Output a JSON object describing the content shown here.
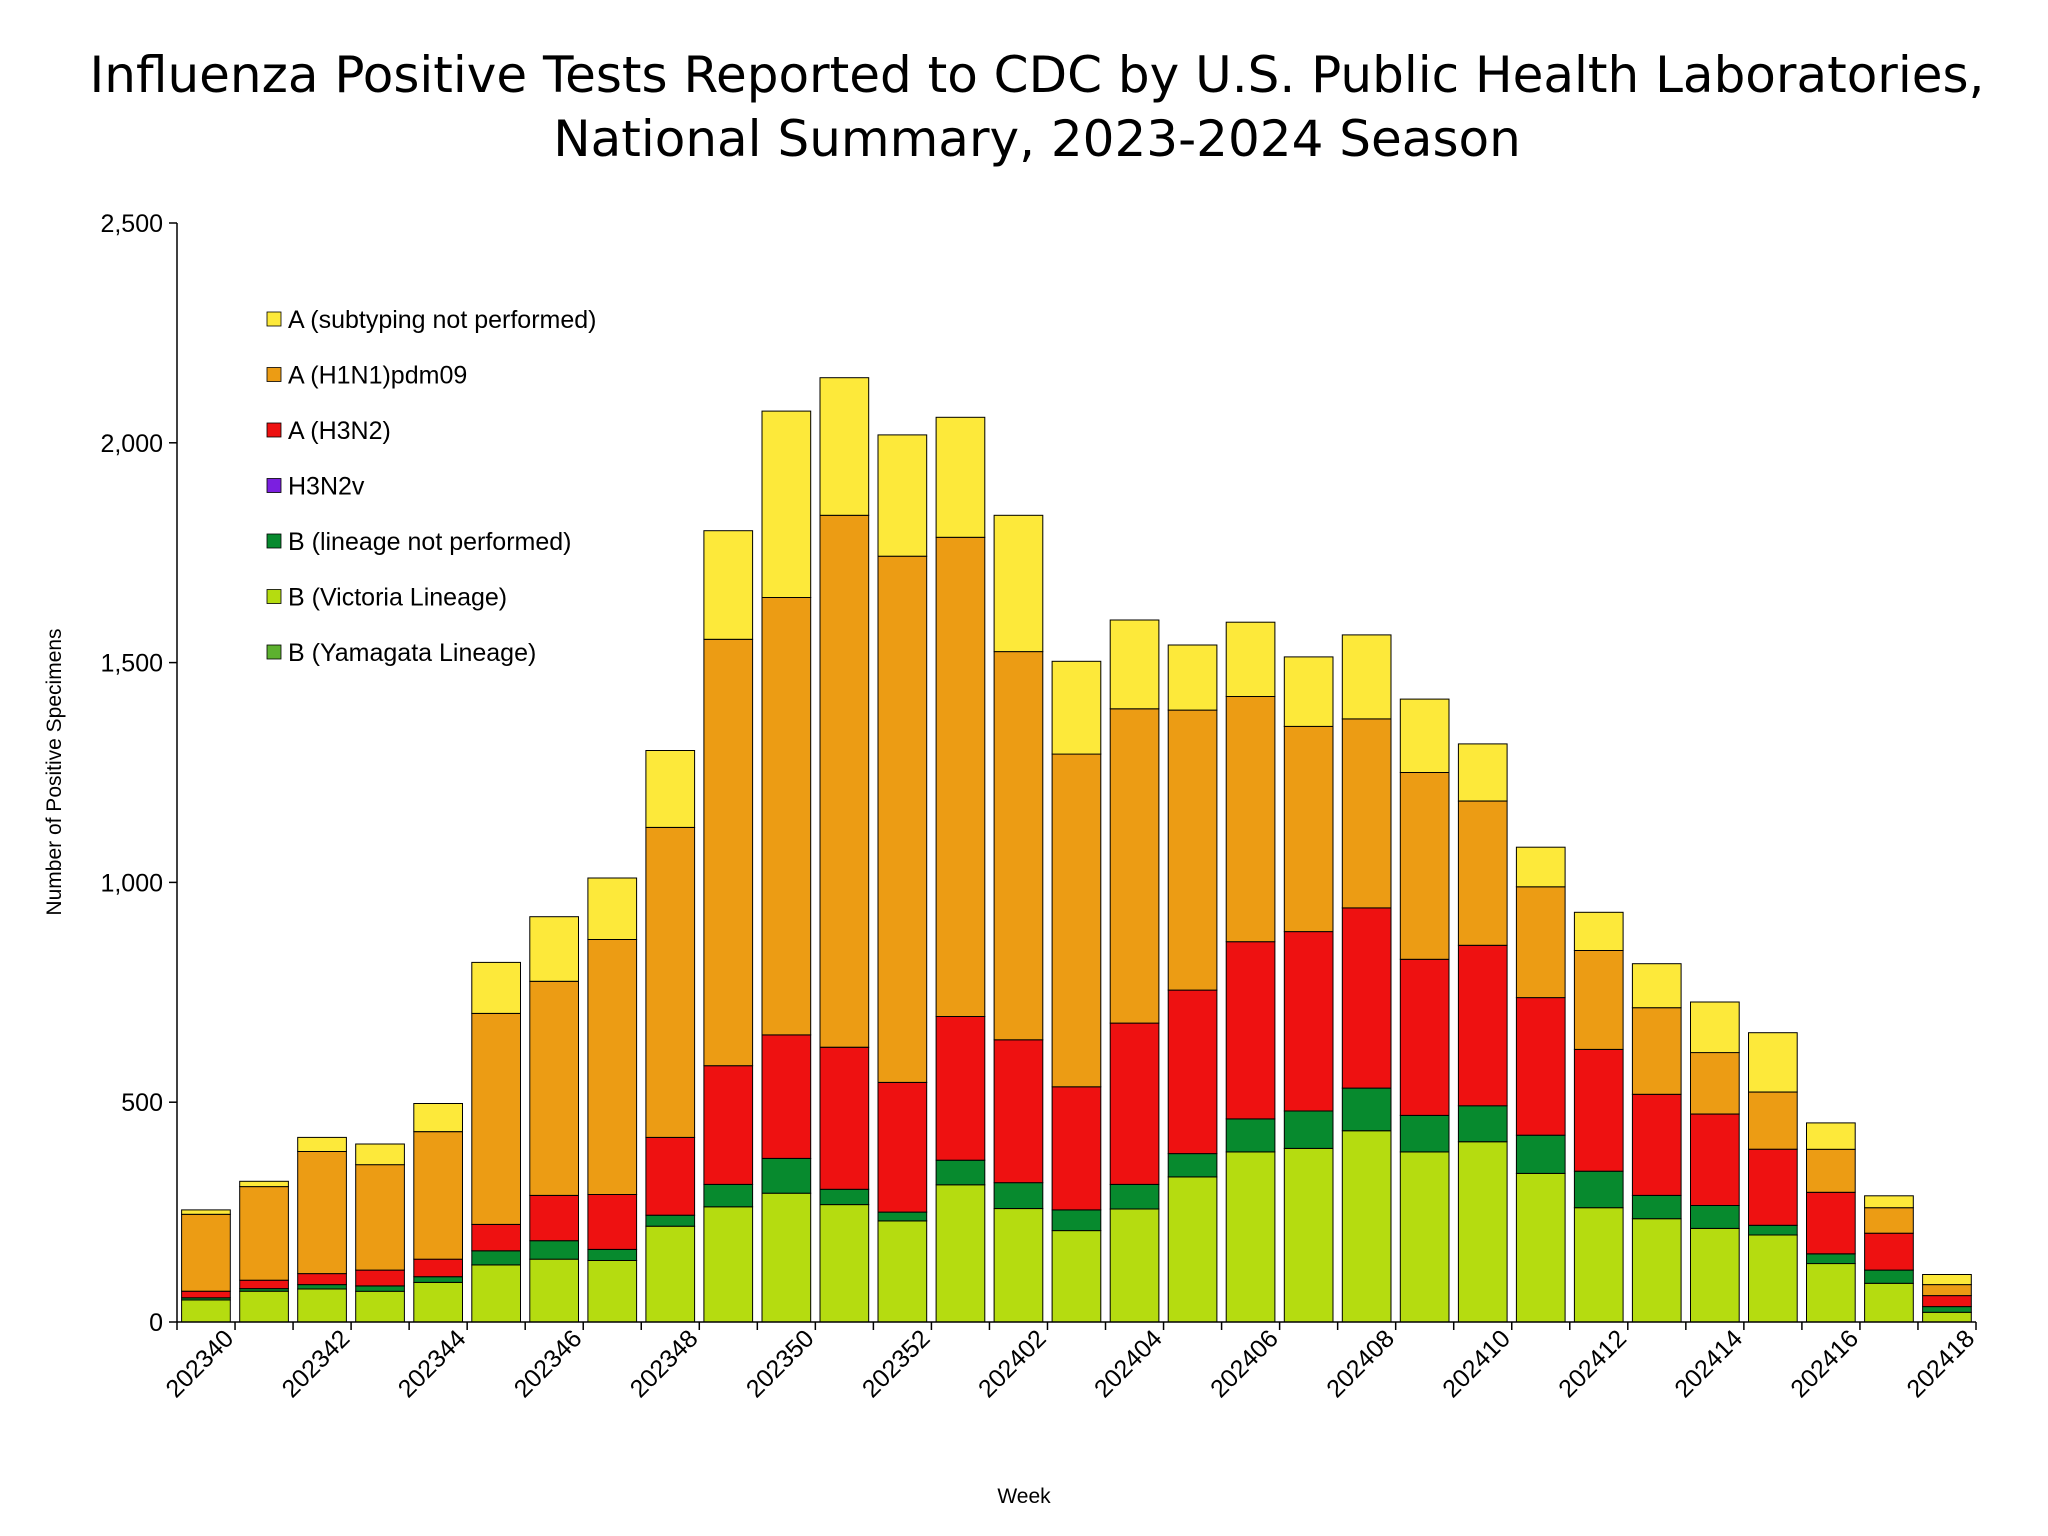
{
  "chart_data": {
    "type": "bar",
    "stacked": true,
    "title": [
      "Influenza Positive Tests Reported to CDC by U.S. Public Health Laboratories,",
      "National Summary, 2023-2024 Season"
    ],
    "xlabel": "Week",
    "ylabel": "Number of Positive Specimens",
    "ylim": [
      0,
      2500
    ],
    "yticks": [
      0,
      500,
      1000,
      1500,
      2000,
      2500
    ],
    "ytick_labels": [
      "0",
      "500",
      "1,000",
      "1,500",
      "2,000",
      "2,500"
    ],
    "grid": false,
    "legend_position": "top-left",
    "categories": [
      "202340",
      "202341",
      "202342",
      "202343",
      "202344",
      "202345",
      "202346",
      "202347",
      "202348",
      "202349",
      "202350",
      "202351",
      "202352",
      "202401",
      "202402",
      "202403",
      "202404",
      "202405",
      "202406",
      "202407",
      "202408",
      "202409",
      "202410",
      "202411",
      "202412",
      "202413",
      "202414",
      "202415",
      "202416",
      "202417",
      "202418"
    ],
    "xtick_labels": [
      "202340",
      "202342",
      "202344",
      "202346",
      "202348",
      "202350",
      "202352",
      "202402",
      "202404",
      "202406",
      "202408",
      "202410",
      "202412",
      "202414",
      "202416",
      "202418"
    ],
    "series": [
      {
        "name": "B (Yamagata Lineage)",
        "color": "#5db12f",
        "values": [
          0,
          0,
          0,
          0,
          0,
          0,
          0,
          0,
          0,
          0,
          0,
          0,
          0,
          0,
          0,
          0,
          0,
          0,
          0,
          0,
          0,
          0,
          0,
          0,
          0,
          0,
          0,
          0,
          0,
          0,
          0
        ]
      },
      {
        "name": "B (Victoria Lineage)",
        "color": "#b5dc10",
        "values": [
          50,
          70,
          75,
          70,
          90,
          130,
          143,
          140,
          218,
          262,
          293,
          267,
          230,
          312,
          258,
          208,
          257,
          330,
          387,
          395,
          435,
          387,
          410,
          338,
          260,
          235,
          213,
          198,
          133,
          88,
          22
        ]
      },
      {
        "name": "B (lineage not performed)",
        "color": "#078a2e",
        "values": [
          5,
          6,
          10,
          12,
          13,
          32,
          42,
          25,
          25,
          51,
          79,
          35,
          20,
          56,
          59,
          47,
          56,
          53,
          75,
          85,
          97,
          83,
          82,
          87,
          83,
          53,
          52,
          22,
          22,
          30,
          13
        ]
      },
      {
        "name": "H3N2v",
        "color": "#7b1fe0",
        "values": [
          0,
          0,
          0,
          0,
          0,
          0,
          0,
          0,
          0,
          0,
          0,
          0,
          0,
          0,
          0,
          0,
          0,
          0,
          0,
          0,
          0,
          0,
          0,
          0,
          0,
          0,
          0,
          0,
          0,
          0,
          0
        ]
      },
      {
        "name": "A (H3N2)",
        "color": "#ee1111",
        "values": [
          15,
          19,
          25,
          36,
          40,
          60,
          103,
          125,
          177,
          270,
          281,
          323,
          295,
          327,
          325,
          280,
          367,
          372,
          403,
          408,
          410,
          355,
          365,
          313,
          277,
          230,
          208,
          173,
          140,
          84,
          25
        ]
      },
      {
        "name": "A (H1N1)pdm09",
        "color": "#ec9c14",
        "values": [
          175,
          213,
          278,
          240,
          290,
          480,
          487,
          580,
          705,
          970,
          995,
          1210,
          1197,
          1090,
          883,
          757,
          715,
          637,
          558,
          467,
          430,
          425,
          328,
          252,
          225,
          197,
          140,
          130,
          98,
          58,
          25
        ]
      },
      {
        "name": "A (subtyping not performed)",
        "color": "#fde93a",
        "values": [
          10,
          12,
          32,
          47,
          64,
          116,
          147,
          140,
          175,
          247,
          424,
          313,
          276,
          273,
          310,
          211,
          202,
          148,
          169,
          158,
          191,
          167,
          130,
          90,
          87,
          100,
          115,
          135,
          60,
          27,
          23
        ]
      }
    ],
    "legend_order": [
      "A (subtyping not performed)",
      "A (H1N1)pdm09",
      "A (H3N2)",
      "H3N2v",
      "B (lineage not performed)",
      "B (Victoria Lineage)",
      "B (Yamagata Lineage)"
    ]
  }
}
